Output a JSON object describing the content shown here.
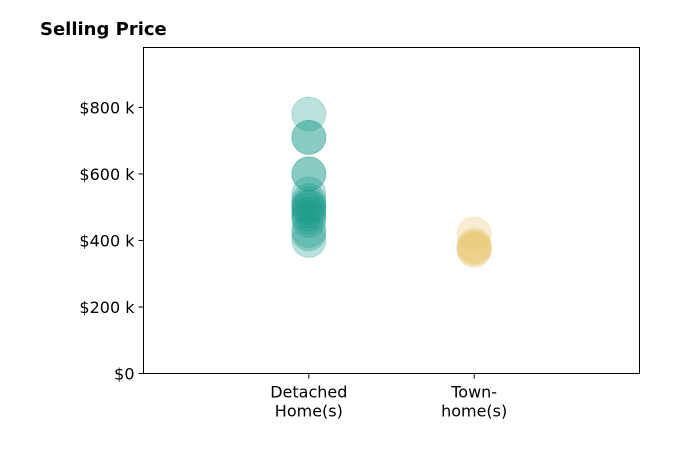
{
  "chart_data": {
    "type": "scatter",
    "title": "Selling Price",
    "xlabel": "",
    "ylabel": "",
    "categories": [
      [
        "Detached",
        "Home(s)"
      ],
      [
        "Town-",
        "home(s)"
      ]
    ],
    "yticks": [
      {
        "value": 0,
        "label": "$0"
      },
      {
        "value": 200,
        "label": "$200 k"
      },
      {
        "value": 400,
        "label": "$400 k"
      },
      {
        "value": 600,
        "label": "$600 k"
      },
      {
        "value": 800,
        "label": "$800 k"
      }
    ],
    "ylim": [
      0,
      980
    ],
    "xlim": [
      -1,
      2
    ],
    "grid": false,
    "series": [
      {
        "category_index": 0,
        "color": "#1a9a8a",
        "values": [
          780,
          710,
          710,
          600,
          600,
          540,
          520,
          510,
          500,
          500,
          490,
          480,
          470,
          460,
          430,
          420,
          400
        ]
      },
      {
        "category_index": 1,
        "color": "#e8c36a",
        "values": [
          420,
          385,
          380,
          375,
          370
        ]
      }
    ]
  }
}
